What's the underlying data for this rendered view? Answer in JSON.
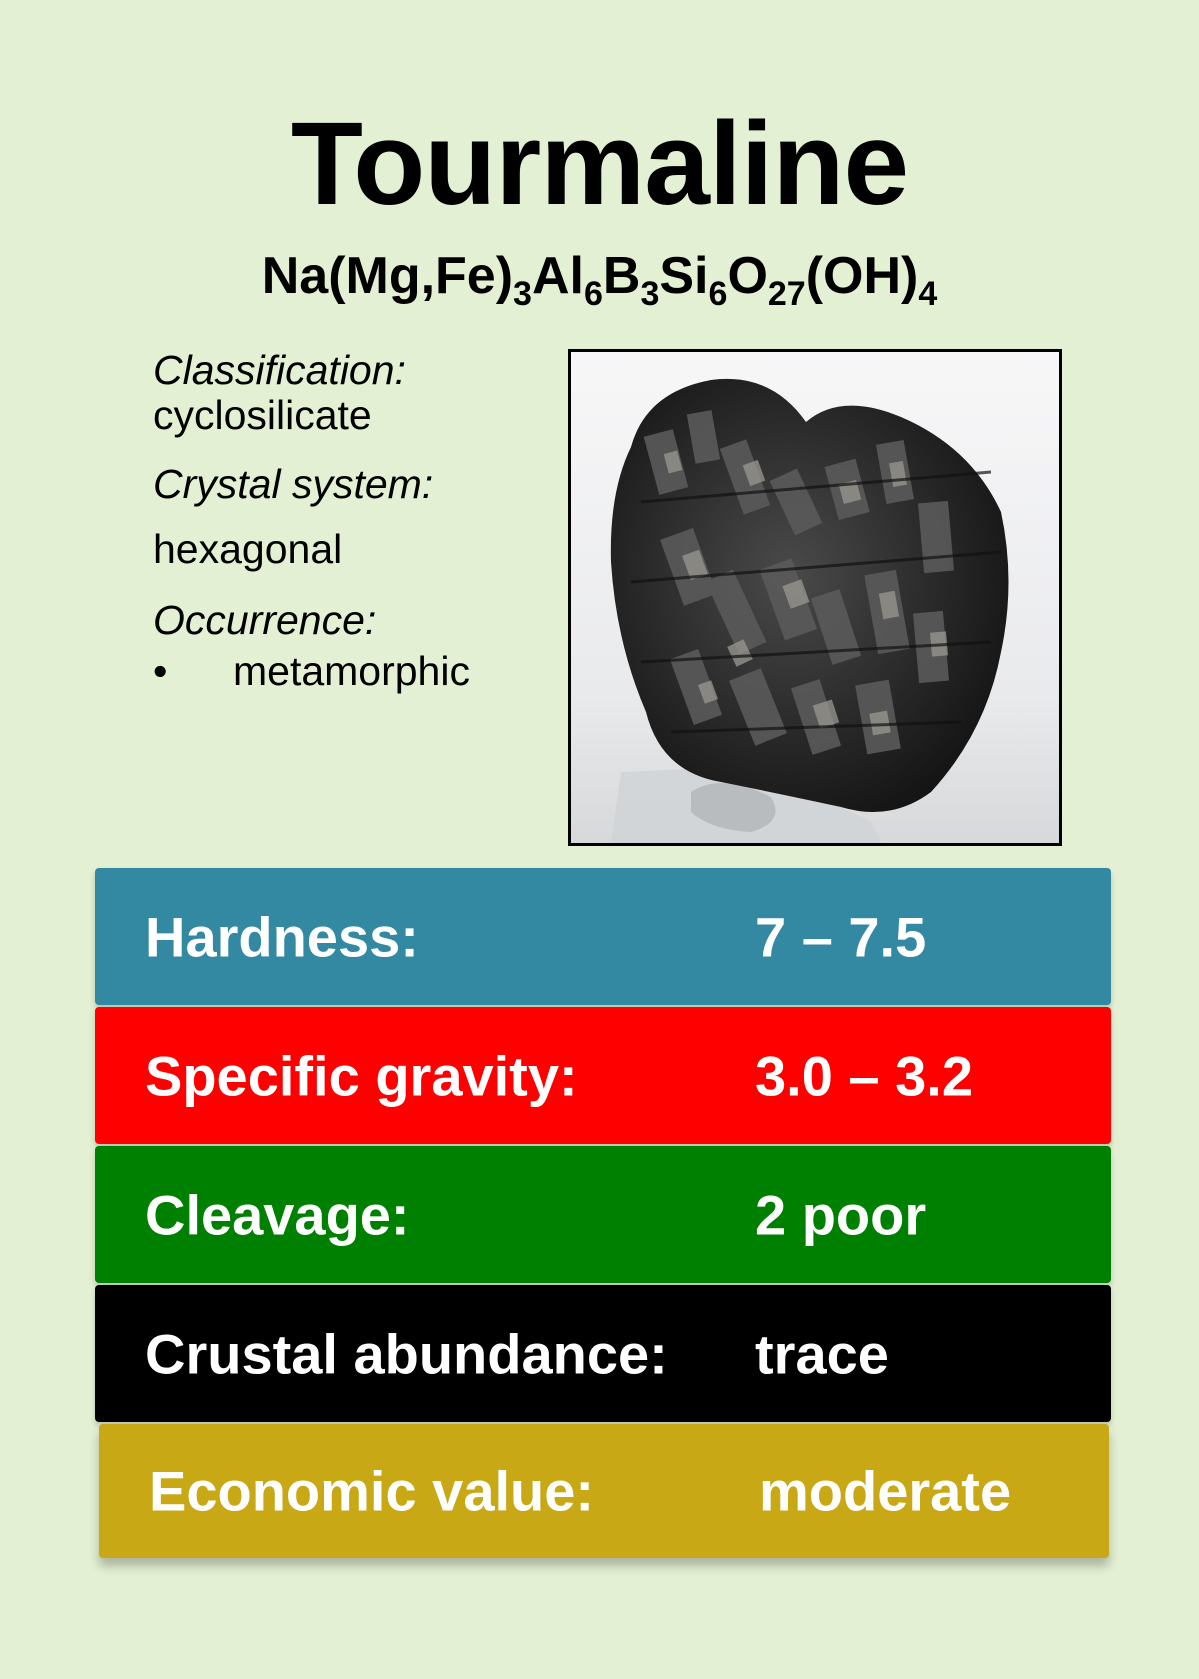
{
  "title": "Tourmaline",
  "formula": {
    "parts": [
      {
        "text": "Na(Mg,Fe)",
        "sub": "3"
      },
      {
        "text": "Al",
        "sub": "6"
      },
      {
        "text": "B",
        "sub": "3"
      },
      {
        "text": "Si",
        "sub": "6"
      },
      {
        "text": "O",
        "sub": "27"
      },
      {
        "text": "(OH)",
        "sub": "4"
      }
    ]
  },
  "info": {
    "classification_label": "Classification:",
    "classification_value": "cyclosilicate",
    "crystal_system_label": "Crystal system:",
    "crystal_system_value": "hexagonal",
    "occurrence_label": "Occurrence:",
    "occurrence_bullet": "•",
    "occurrence_items": [
      "metamorphic"
    ]
  },
  "photo": {
    "subject": "tourmaline specimen photo"
  },
  "properties": [
    {
      "label": "Hardness:",
      "value": "7 – 7.5",
      "color": "#3388a2"
    },
    {
      "label": "Specific gravity:",
      "value": "3.0 – 3.2",
      "color": "#ff0000"
    },
    {
      "label": "Cleavage:",
      "value": "2 poor",
      "color": "#008000"
    },
    {
      "label": "Crustal abundance:",
      "value": "trace",
      "color": "#000000"
    },
    {
      "label": "Economic value:",
      "value": "moderate",
      "color": "#c9a816"
    }
  ],
  "colors": {
    "background": "#e3f0d3"
  }
}
